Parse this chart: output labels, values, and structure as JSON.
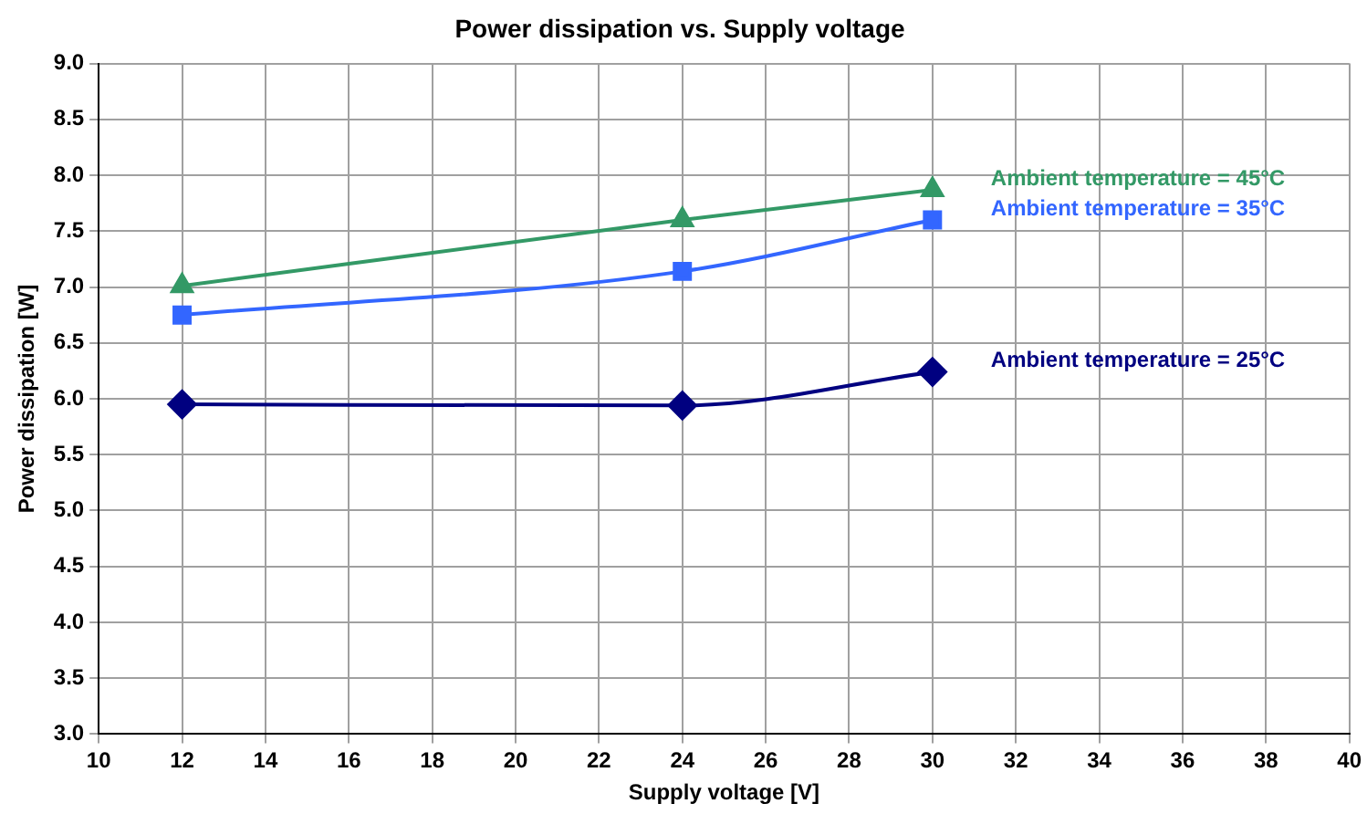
{
  "chart_data": {
    "type": "line",
    "title": "Power dissipation vs. Supply voltage",
    "xlabel": "Supply voltage [V]",
    "ylabel": "Power dissipation [W]",
    "x": [
      12,
      24,
      30
    ],
    "series": [
      {
        "name": "Ambient temperature = 45°C",
        "color": "#339966",
        "marker": "triangle",
        "values": [
          7.01,
          7.6,
          7.87
        ]
      },
      {
        "name": "Ambient temperature = 35°C",
        "color": "#3366ff",
        "marker": "square",
        "values": [
          6.75,
          7.14,
          7.6
        ]
      },
      {
        "name": "Ambient temperature = 25°C",
        "color": "#000080",
        "marker": "diamond",
        "values": [
          5.95,
          5.94,
          6.24
        ]
      }
    ],
    "xlim": [
      10,
      40
    ],
    "xticks": [
      10,
      12,
      14,
      16,
      18,
      20,
      22,
      24,
      26,
      28,
      30,
      32,
      34,
      36,
      38,
      40
    ],
    "ylim": [
      3,
      9
    ],
    "yticks": [
      {
        "value": 3,
        "label": "3.0"
      },
      {
        "value": 3.5,
        "label": "3.5"
      },
      {
        "value": 4,
        "label": "4.0"
      },
      {
        "value": 4.5,
        "label": "4.5"
      },
      {
        "value": 5,
        "label": "5.0"
      },
      {
        "value": 5.5,
        "label": "5.5"
      },
      {
        "value": 6,
        "label": "6.0"
      },
      {
        "value": 6.5,
        "label": "6.5"
      },
      {
        "value": 7,
        "label": "7.0"
      },
      {
        "value": 7.5,
        "label": "7.5"
      },
      {
        "value": 8,
        "label": "8.0"
      },
      {
        "value": 8.5,
        "label": "8.5"
      },
      {
        "value": 9,
        "label": "9.0"
      }
    ],
    "grid": true,
    "legend": false,
    "line_style": "solid"
  }
}
